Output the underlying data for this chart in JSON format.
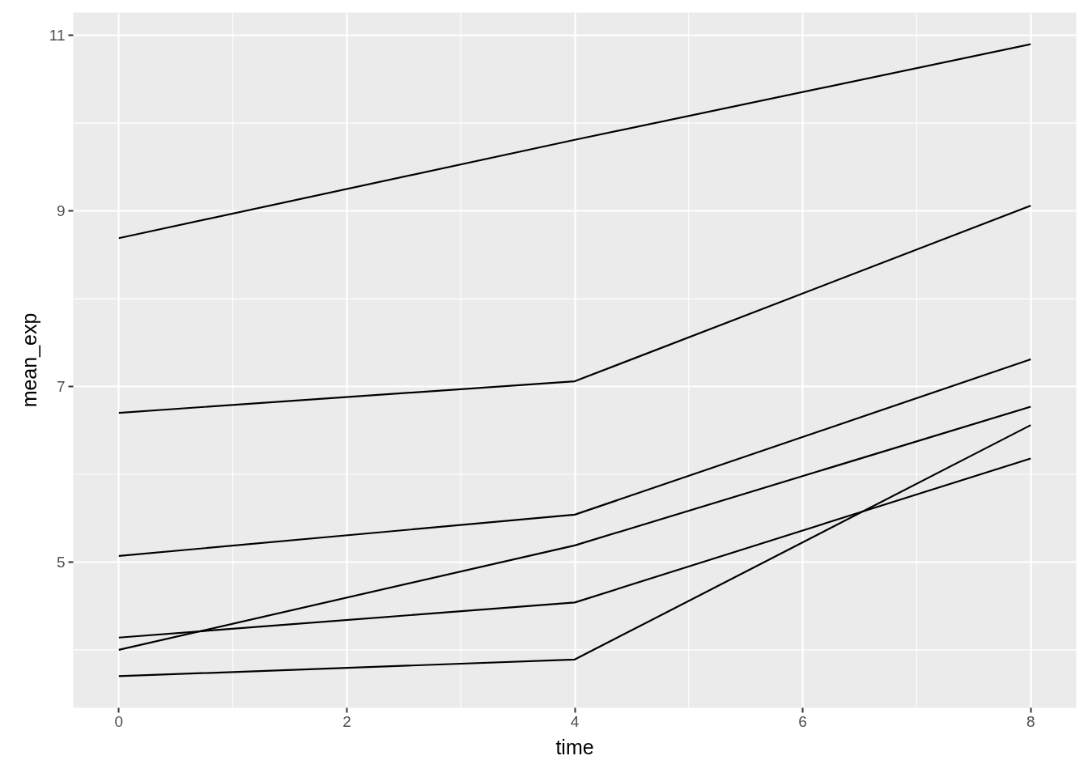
{
  "chart_data": {
    "type": "line",
    "xlabel": "time",
    "ylabel": "mean_exp",
    "x": [
      0,
      4,
      8
    ],
    "series": [
      {
        "color": "#000000",
        "values": [
          8.69,
          9.81,
          10.9
        ]
      },
      {
        "color": "#000000",
        "values": [
          6.7,
          7.06,
          9.06
        ]
      },
      {
        "color": "#000000",
        "values": [
          5.07,
          5.54,
          7.31
        ]
      },
      {
        "color": "#000000",
        "values": [
          4.0,
          5.19,
          6.77
        ]
      },
      {
        "color": "#000000",
        "values": [
          4.14,
          4.54,
          6.18
        ]
      },
      {
        "color": "#000000",
        "values": [
          3.7,
          3.89,
          6.56
        ]
      }
    ],
    "xlim": [
      -0.4,
      8.4
    ],
    "ylim": [
      3.34,
      11.26
    ],
    "xticks": [
      0,
      2,
      4,
      6,
      8
    ],
    "yticks": [
      5,
      7,
      9,
      11
    ],
    "grid": true
  }
}
